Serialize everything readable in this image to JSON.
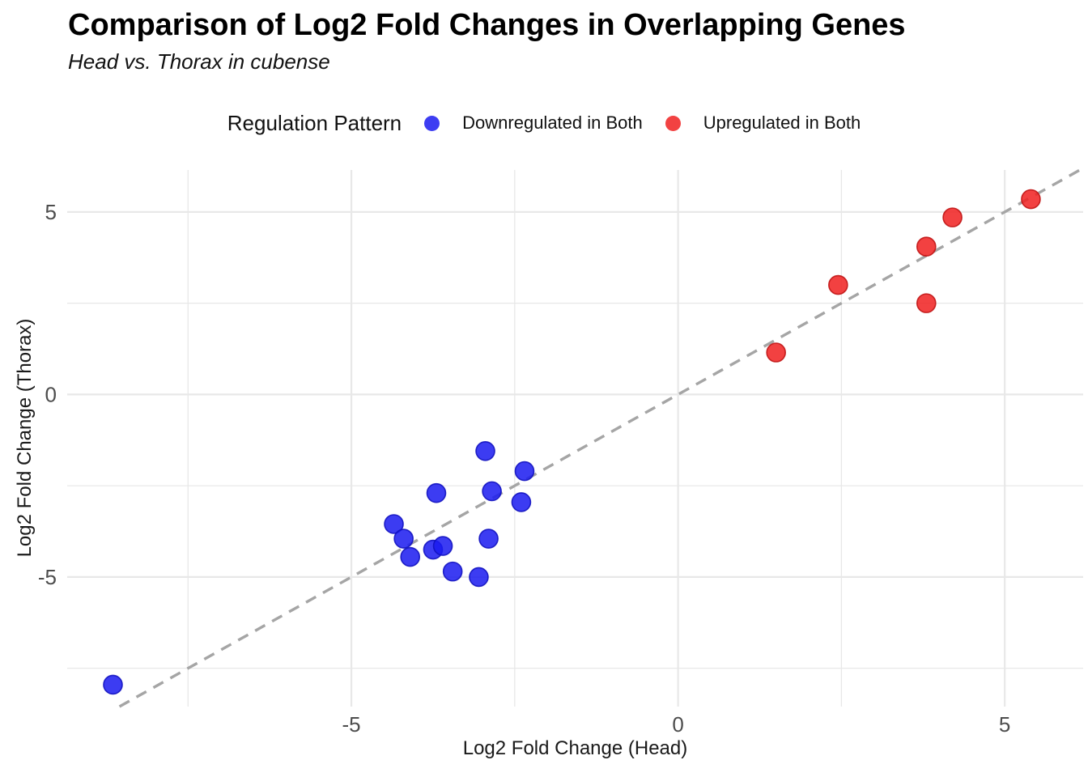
{
  "title": "Comparison of Log2 Fold Changes in Overlapping Genes",
  "subtitle": "Head vs. Thorax in cubense",
  "legend": {
    "title": "Regulation Pattern",
    "items": [
      {
        "label": "Downregulated in Both",
        "color": "#3d3df2"
      },
      {
        "label": "Upregulated in Both",
        "color": "#f24242"
      }
    ]
  },
  "chart_data": {
    "type": "scatter",
    "title": "Comparison of Log2 Fold Changes in Overlapping Genes",
    "subtitle": "Head vs. Thorax in cubense",
    "xlabel": "Log2 Fold Change (Head)",
    "ylabel": "Log2 Fold Change (Thorax)",
    "x_domain": [
      -9.35,
      6.2
    ],
    "y_domain": [
      -8.55,
      6.15
    ],
    "x_ticks": [
      -5,
      0,
      5
    ],
    "y_ticks": [
      -5,
      0,
      5
    ],
    "minor_tick_step": 2.5,
    "grid": true,
    "grid_color": "#e8e8e8",
    "legend_position": "top",
    "reference_line": {
      "type": "identity y = x",
      "style": "dashed",
      "color": "#a5a5a5"
    },
    "series": [
      {
        "name": "Downregulated in Both",
        "fill": "#1a1af0",
        "stroke": "#1212c0",
        "points": [
          [
            -8.65,
            -7.95
          ],
          [
            -4.35,
            -3.55
          ],
          [
            -4.2,
            -3.95
          ],
          [
            -4.1,
            -4.45
          ],
          [
            -3.75,
            -4.25
          ],
          [
            -3.7,
            -2.7
          ],
          [
            -3.6,
            -4.15
          ],
          [
            -3.45,
            -4.85
          ],
          [
            -3.05,
            -5.0
          ],
          [
            -2.95,
            -1.55
          ],
          [
            -2.9,
            -3.95
          ],
          [
            -2.85,
            -2.65
          ],
          [
            -2.4,
            -2.95
          ],
          [
            -2.35,
            -2.1
          ]
        ]
      },
      {
        "name": "Upregulated in Both",
        "fill": "#f02020",
        "stroke": "#c01414",
        "points": [
          [
            1.5,
            1.15
          ],
          [
            2.45,
            3.0
          ],
          [
            3.8,
            4.05
          ],
          [
            3.8,
            2.5
          ],
          [
            4.2,
            4.85
          ],
          [
            5.4,
            5.35
          ]
        ]
      }
    ]
  }
}
